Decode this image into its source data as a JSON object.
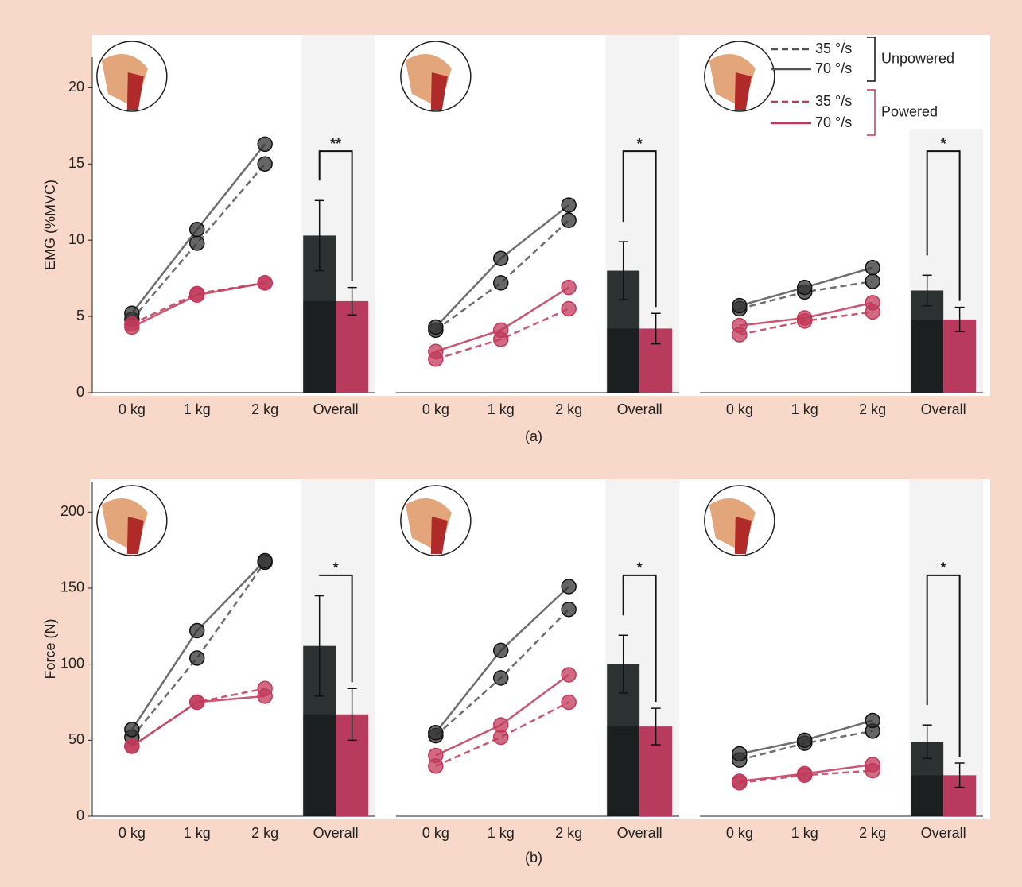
{
  "chart_data": [
    {
      "type": "line-bar",
      "ylabel": "EMG (%MVC)",
      "ylim": [
        0,
        22
      ],
      "yticks": [
        0,
        5,
        10,
        15,
        20
      ],
      "categories": [
        "0 kg",
        "1 kg",
        "2 kg",
        "Overall"
      ],
      "series": [
        {
          "name": "35 °/s",
          "group": "Unpowered",
          "color": "#555555",
          "dashed": true,
          "values": [
            4.8,
            9.8,
            15.0,
            null
          ]
        },
        {
          "name": "70 °/s",
          "group": "Unpowered",
          "color": "#555555",
          "dashed": false,
          "values": [
            5.2,
            10.7,
            16.3,
            null
          ]
        },
        {
          "name": "35 °/s",
          "group": "Powered",
          "color": "#c0395a",
          "dashed": true,
          "values": [
            4.5,
            6.5,
            7.2,
            null
          ]
        },
        {
          "name": "70 °/s",
          "group": "Powered",
          "color": "#c0395a",
          "dashed": false,
          "values": [
            4.3,
            6.4,
            7.2,
            null
          ]
        }
      ],
      "bars": {
        "values": [
          10.3,
          6.0
        ],
        "errors": [
          2.3,
          0.9
        ],
        "colors": [
          "#2c3131",
          "#b83a5c"
        ]
      },
      "significance": "**"
    },
    {
      "type": "line-bar",
      "ylim": [
        0,
        22
      ],
      "categories": [
        "0 kg",
        "1 kg",
        "2 kg",
        "Overall"
      ],
      "series": [
        {
          "color": "#555555",
          "dashed": true,
          "values": [
            4.1,
            7.2,
            11.3,
            null
          ]
        },
        {
          "color": "#555555",
          "dashed": false,
          "values": [
            4.3,
            8.8,
            12.3,
            null
          ]
        },
        {
          "color": "#c0395a",
          "dashed": true,
          "values": [
            2.2,
            3.5,
            5.5,
            null
          ]
        },
        {
          "color": "#c0395a",
          "dashed": false,
          "values": [
            2.7,
            4.1,
            6.9,
            null
          ]
        }
      ],
      "bars": {
        "values": [
          8.0,
          4.2
        ],
        "errors": [
          1.9,
          1.0
        ],
        "colors": [
          "#2c3131",
          "#b83a5c"
        ]
      },
      "significance": "*"
    },
    {
      "type": "line-bar",
      "ylim": [
        0,
        22
      ],
      "categories": [
        "0 kg",
        "1 kg",
        "2 kg",
        "Overall"
      ],
      "series": [
        {
          "color": "#555555",
          "dashed": true,
          "values": [
            5.5,
            6.6,
            7.3,
            null
          ]
        },
        {
          "color": "#555555",
          "dashed": false,
          "values": [
            5.7,
            6.9,
            8.2,
            null
          ]
        },
        {
          "color": "#c0395a",
          "dashed": true,
          "values": [
            3.8,
            4.7,
            5.3,
            null
          ]
        },
        {
          "color": "#c0395a",
          "dashed": false,
          "values": [
            4.4,
            4.9,
            5.9,
            null
          ]
        }
      ],
      "bars": {
        "values": [
          6.7,
          4.8
        ],
        "errors": [
          1.0,
          0.8
        ],
        "colors": [
          "#2c3131",
          "#b83a5c"
        ]
      },
      "significance": "*"
    },
    {
      "type": "line-bar",
      "ylabel": "Force (N)",
      "ylim": [
        0,
        220
      ],
      "yticks": [
        0,
        50,
        100,
        150,
        200
      ],
      "categories": [
        "0 kg",
        "1 kg",
        "2 kg",
        "Overall"
      ],
      "series": [
        {
          "color": "#555555",
          "dashed": true,
          "values": [
            52,
            104,
            167,
            null
          ]
        },
        {
          "color": "#555555",
          "dashed": false,
          "values": [
            57,
            122,
            168,
            null
          ]
        },
        {
          "color": "#c0395a",
          "dashed": true,
          "values": [
            46,
            75,
            84,
            null
          ]
        },
        {
          "color": "#c0395a",
          "dashed": false,
          "values": [
            46,
            75,
            79,
            null
          ]
        }
      ],
      "bars": {
        "values": [
          112,
          67
        ],
        "errors": [
          33,
          17
        ],
        "colors": [
          "#2c3131",
          "#b83a5c"
        ]
      },
      "significance": "*"
    },
    {
      "type": "line-bar",
      "ylim": [
        0,
        220
      ],
      "categories": [
        "0 kg",
        "1 kg",
        "2 kg",
        "Overall"
      ],
      "series": [
        {
          "color": "#555555",
          "dashed": true,
          "values": [
            53,
            91,
            136,
            null
          ]
        },
        {
          "color": "#555555",
          "dashed": false,
          "values": [
            55,
            109,
            151,
            null
          ]
        },
        {
          "color": "#c0395a",
          "dashed": true,
          "values": [
            33,
            52,
            75,
            null
          ]
        },
        {
          "color": "#c0395a",
          "dashed": false,
          "values": [
            40,
            60,
            93,
            null
          ]
        }
      ],
      "bars": {
        "values": [
          100,
          59
        ],
        "errors": [
          19,
          12
        ],
        "colors": [
          "#2c3131",
          "#b83a5c"
        ]
      },
      "significance": "*"
    },
    {
      "type": "line-bar",
      "ylim": [
        0,
        220
      ],
      "categories": [
        "0 kg",
        "1 kg",
        "2 kg",
        "Overall"
      ],
      "series": [
        {
          "color": "#555555",
          "dashed": true,
          "values": [
            37,
            48,
            56,
            null
          ]
        },
        {
          "color": "#555555",
          "dashed": false,
          "values": [
            41,
            50,
            63,
            null
          ]
        },
        {
          "color": "#c0395a",
          "dashed": true,
          "values": [
            22,
            27,
            30,
            null
          ]
        },
        {
          "color": "#c0395a",
          "dashed": false,
          "values": [
            23,
            28,
            34,
            null
          ]
        }
      ],
      "bars": {
        "values": [
          49,
          27
        ],
        "errors": [
          11,
          8
        ],
        "colors": [
          "#2c3131",
          "#b83a5c"
        ]
      },
      "significance": "*"
    }
  ],
  "captions": [
    "(a)",
    "(b)"
  ]
}
